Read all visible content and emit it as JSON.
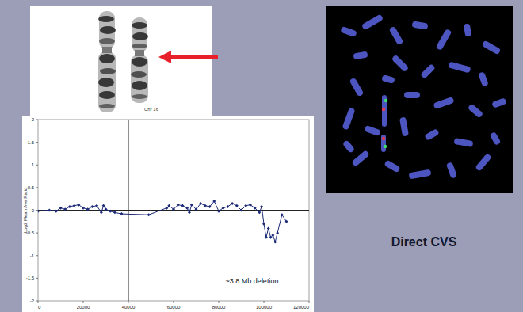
{
  "chart_data": {
    "type": "line",
    "y_label": "Log2 Mean Ave Ratio",
    "x": [
      0,
      5000,
      8000,
      10000,
      12000,
      14000,
      16000,
      18000,
      20000,
      22000,
      24000,
      26000,
      28000,
      29000,
      30000,
      32000,
      34000,
      37000,
      49000,
      57000,
      58000,
      60000,
      62000,
      64000,
      66000,
      67000,
      68000,
      70000,
      72000,
      74000,
      76000,
      78000,
      80000,
      82000,
      84000,
      86000,
      88000,
      90000,
      92000,
      94000,
      96000,
      98000,
      99000,
      100000,
      101000,
      102000,
      103000,
      104000,
      105000,
      106000,
      108000,
      110000
    ],
    "values": [
      -0.02,
      0,
      -0.02,
      0.05,
      0.02,
      0.08,
      0.1,
      0.12,
      0.05,
      0.02,
      0.08,
      0.1,
      -0.05,
      0.1,
      0.02,
      -0.02,
      -0.05,
      -0.08,
      -0.1,
      0.05,
      0.1,
      0.02,
      0.12,
      0.1,
      0.05,
      -0.05,
      0.12,
      0.02,
      0.15,
      0.1,
      0.08,
      0.2,
      -0.02,
      0.05,
      0.08,
      0.15,
      0.1,
      0,
      0.1,
      0.12,
      0.05,
      -0.05,
      0.08,
      -0.3,
      -0.6,
      -0.4,
      -0.6,
      -0.55,
      -0.7,
      -0.5,
      -0.1,
      -0.25
    ],
    "color": "#1c2a78",
    "marker": "diamond",
    "xlim": [
      0,
      120000
    ],
    "xticks": [
      0,
      20000,
      40000,
      60000,
      80000,
      100000,
      120000
    ],
    "ylim": [
      -2,
      2
    ],
    "yticks": [
      -2,
      -1.5,
      -1,
      -0.5,
      0,
      0.5,
      1,
      1.5,
      2
    ],
    "grid": false,
    "reference_lines": {
      "x": [
        40000
      ],
      "y": [
        0
      ]
    },
    "annotations": [
      "~3.8 Mb deletion"
    ]
  },
  "slide": {
    "karyotype_label": "Chr 16",
    "caption": "Direct CVS"
  }
}
